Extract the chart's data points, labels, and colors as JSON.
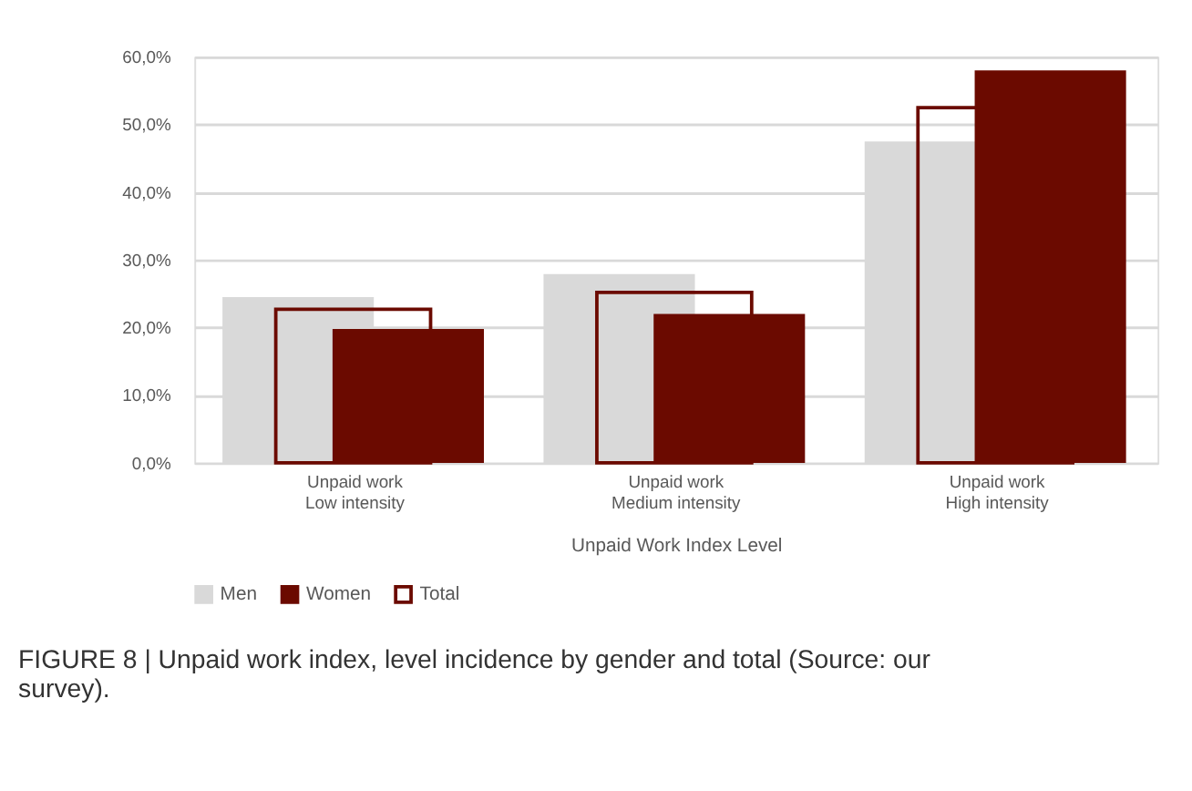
{
  "chart_data": {
    "type": "bar",
    "categories": [
      "Unpaid work\nLow intensity",
      "Unpaid work\nMedium intensity",
      "Unpaid work\nHigh intensity"
    ],
    "xlabel": "Unpaid  Work Index Level",
    "series": [
      {
        "name": "Men",
        "color": "#d9d9d9",
        "values": [
          24.5,
          27.9,
          47.5
        ]
      },
      {
        "name": "Women",
        "color": "#6b0a00",
        "values": [
          19.8,
          22.0,
          58.0
        ]
      },
      {
        "name": "Total",
        "color": "#6b0a00",
        "values": [
          22.7,
          25.2,
          52.5
        ]
      }
    ],
    "ylim": [
      0,
      60
    ],
    "yticks": [
      {
        "value": 0,
        "label": "0,0%"
      },
      {
        "value": 10,
        "label": "10,0%"
      },
      {
        "value": 20,
        "label": "20,0%"
      },
      {
        "value": 30,
        "label": "30,0%"
      },
      {
        "value": 40,
        "label": "40,0%"
      },
      {
        "value": 50,
        "label": "50,0%"
      },
      {
        "value": 60,
        "label": "60,0%"
      }
    ],
    "grid": "y",
    "legend": "bottom",
    "annotations": [
      "FIGURE 8 | Unpaid work index, level incidence by gender and total (Source: our survey)."
    ]
  }
}
